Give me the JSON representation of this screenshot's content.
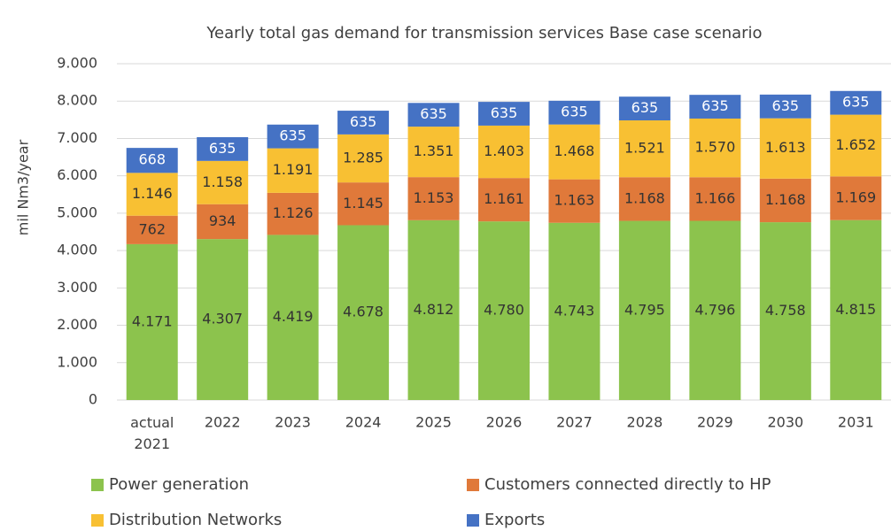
{
  "chart_data": {
    "type": "stacked_bar",
    "title": "Yearly total gas demand for transmission services Base case scenario",
    "y_label": "mil Nm3/year",
    "categories": [
      "actual 2021",
      "2022",
      "2023",
      "2024",
      "2025",
      "2026",
      "2027",
      "2028",
      "2029",
      "2030",
      "2031"
    ],
    "series": [
      {
        "name": "Power generation",
        "color": "#8cc34d",
        "values": [
          4171,
          4307,
          4419,
          4678,
          4812,
          4780,
          4743,
          4795,
          4796,
          4758,
          4815
        ],
        "value_labels": [
          "4.171",
          "4.307",
          "4.419",
          "4.678",
          "4.812",
          "4.780",
          "4.743",
          "4.795",
          "4.796",
          "4.758",
          "4.815"
        ]
      },
      {
        "name": "Customers connected directly to HP",
        "color": "#e0793a",
        "values": [
          762,
          934,
          1126,
          1145,
          1153,
          1161,
          1163,
          1168,
          1166,
          1168,
          1169
        ],
        "value_labels": [
          "762",
          "934",
          "1.126",
          "1.145",
          "1.153",
          "1.161",
          "1.163",
          "1.168",
          "1.166",
          "1.168",
          "1.169"
        ]
      },
      {
        "name": "Distribution Networks",
        "color": "#f8c033",
        "values": [
          1146,
          1158,
          1191,
          1285,
          1351,
          1403,
          1468,
          1521,
          1570,
          1613,
          1652
        ],
        "value_labels": [
          "1.146",
          "1.158",
          "1.191",
          "1.285",
          "1.351",
          "1.403",
          "1.468",
          "1.521",
          "1.570",
          "1.613",
          "1.652"
        ]
      },
      {
        "name": "Exports",
        "color": "#4572c4",
        "values": [
          668,
          635,
          635,
          635,
          635,
          635,
          635,
          635,
          635,
          635,
          635
        ],
        "value_labels": [
          "668",
          "635",
          "635",
          "635",
          "635",
          "635",
          "635",
          "635",
          "635",
          "635",
          "635"
        ]
      }
    ],
    "ylim": [
      0,
      9000
    ],
    "yticks": [
      0,
      {
        "value": 1000,
        "label": "1.000"
      },
      {
        "value": 2000,
        "label": "2.000"
      },
      {
        "value": 3000,
        "label": "3.000"
      },
      {
        "value": 4000,
        "label": "4.000"
      },
      {
        "value": 5000,
        "label": "5.000"
      },
      {
        "value": 6000,
        "label": "6.000"
      },
      {
        "value": 7000,
        "label": "7.000"
      },
      {
        "value": 8000,
        "label": "8.000"
      },
      {
        "value": 9000,
        "label": "9.000"
      }
    ],
    "grid": true,
    "legend": "bottom"
  }
}
